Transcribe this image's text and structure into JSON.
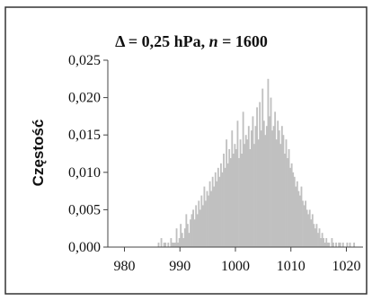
{
  "chart_data": {
    "type": "bar",
    "title": "Δ = 0,25 hPa, n = 1600",
    "title_parts": {
      "prefix": "Δ = 0,25 hPa, ",
      "italic": "n",
      "suffix": " = 1600"
    },
    "xlabel": "",
    "ylabel": "Częstość",
    "xlim": [
      977,
      1023
    ],
    "ylim": [
      0,
      0.025
    ],
    "x_ticks": [
      980,
      990,
      1000,
      1010,
      1020
    ],
    "x_tick_labels": [
      "980",
      "990",
      "1000",
      "1010",
      "1020"
    ],
    "y_ticks": [
      0,
      0.005,
      0.01,
      0.015,
      0.02,
      0.025
    ],
    "y_tick_labels": [
      "0,000",
      "0,005",
      "0,010",
      "0,015",
      "0,020",
      "0,025"
    ],
    "bin_width": 0.25,
    "bin_start": 986.0,
    "bars_color": "#c0c0c0",
    "x": [
      986.0,
      986.25,
      986.5,
      986.75,
      987.0,
      987.25,
      987.5,
      987.75,
      988.0,
      988.25,
      988.5,
      988.75,
      989.0,
      989.25,
      989.5,
      989.75,
      990.0,
      990.25,
      990.5,
      990.75,
      991.0,
      991.25,
      991.5,
      991.75,
      992.0,
      992.25,
      992.5,
      992.75,
      993.0,
      993.25,
      993.5,
      993.75,
      994.0,
      994.25,
      994.5,
      994.75,
      995.0,
      995.25,
      995.5,
      995.75,
      996.0,
      996.25,
      996.5,
      996.75,
      997.0,
      997.25,
      997.5,
      997.75,
      998.0,
      998.25,
      998.5,
      998.75,
      999.0,
      999.25,
      999.5,
      999.75,
      1000.0,
      1000.25,
      1000.5,
      1000.75,
      1001.0,
      1001.25,
      1001.5,
      1001.75,
      1002.0,
      1002.25,
      1002.5,
      1002.75,
      1003.0,
      1003.25,
      1003.5,
      1003.75,
      1004.0,
      1004.25,
      1004.5,
      1004.75,
      1005.0,
      1005.25,
      1005.5,
      1005.75,
      1006.0,
      1006.25,
      1006.5,
      1006.75,
      1007.0,
      1007.25,
      1007.5,
      1007.75,
      1008.0,
      1008.25,
      1008.5,
      1008.75,
      1009.0,
      1009.25,
      1009.5,
      1009.75,
      1010.0,
      1010.25,
      1010.5,
      1010.75,
      1011.0,
      1011.25,
      1011.5,
      1011.75,
      1012.0,
      1012.25,
      1012.5,
      1012.75,
      1013.0,
      1013.25,
      1013.5,
      1013.75,
      1014.0,
      1014.25,
      1014.5,
      1014.75,
      1015.0,
      1015.25,
      1015.5,
      1015.75,
      1016.0,
      1016.25,
      1016.5,
      1016.75,
      1017.0,
      1017.25,
      1017.5,
      1017.75,
      1018.0,
      1018.25,
      1018.5,
      1018.75,
      1019.0,
      1019.25,
      1019.5,
      1019.75,
      1020.0,
      1020.25,
      1020.5,
      1020.75,
      1021.0,
      1021.25,
      1021.5
    ],
    "values": [
      0.0006,
      0,
      0.0012,
      0,
      0.0006,
      0.0006,
      0,
      0.0006,
      0,
      0.0012,
      0.0006,
      0.0006,
      0.0006,
      0.0025,
      0.0006,
      0.0012,
      0.0031,
      0.0019,
      0.0012,
      0.0025,
      0.0044,
      0.0031,
      0.0019,
      0.0037,
      0.0044,
      0.005,
      0.0037,
      0.0056,
      0.0044,
      0.0062,
      0.005,
      0.0069,
      0.0056,
      0.0081,
      0.0062,
      0.0075,
      0.0069,
      0.0088,
      0.0075,
      0.0094,
      0.0081,
      0.01,
      0.0088,
      0.0106,
      0.0094,
      0.0112,
      0.01,
      0.0125,
      0.0106,
      0.0144,
      0.0112,
      0.0131,
      0.0119,
      0.0156,
      0.0125,
      0.0138,
      0.0131,
      0.0169,
      0.0119,
      0.0144,
      0.0125,
      0.0181,
      0.0138,
      0.015,
      0.0144,
      0.0162,
      0.0131,
      0.0156,
      0.0175,
      0.0138,
      0.0162,
      0.0187,
      0.0144,
      0.0194,
      0.0156,
      0.0212,
      0.0169,
      0.015,
      0.0162,
      0.0225,
      0.0175,
      0.02,
      0.0156,
      0.0162,
      0.0181,
      0.0144,
      0.0169,
      0.0156,
      0.0138,
      0.0162,
      0.015,
      0.0125,
      0.0144,
      0.0119,
      0.0131,
      0.0106,
      0.0112,
      0.01,
      0.0094,
      0.0081,
      0.0088,
      0.0075,
      0.0069,
      0.0081,
      0.0062,
      0.0056,
      0.0062,
      0.005,
      0.0044,
      0.005,
      0.0037,
      0.0044,
      0.0031,
      0.0025,
      0.0031,
      0.0019,
      0.0025,
      0.0012,
      0.0019,
      0.0012,
      0.0006,
      0.0012,
      0.0006,
      0.0006,
      0,
      0.0012,
      0.0006,
      0,
      0.0006,
      0,
      0.0006,
      0.0006,
      0,
      0.0006,
      0,
      0,
      0.0006,
      0,
      0.0006,
      0,
      0,
      0.0006,
      0
    ]
  }
}
